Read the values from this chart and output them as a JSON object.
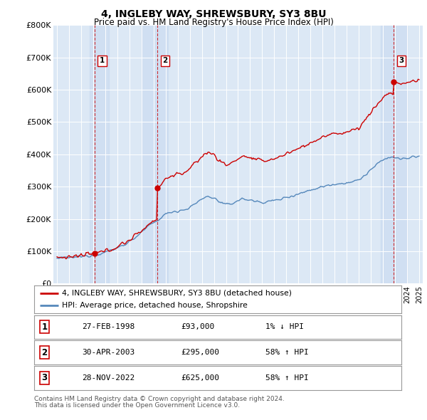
{
  "title": "4, INGLEBY WAY, SHREWSBURY, SY3 8BU",
  "subtitle": "Price paid vs. HM Land Registry's House Price Index (HPI)",
  "ylabel_ticks": [
    "£0",
    "£100K",
    "£200K",
    "£300K",
    "£400K",
    "£500K",
    "£600K",
    "£700K",
    "£800K"
  ],
  "ytick_values": [
    0,
    100000,
    200000,
    300000,
    400000,
    500000,
    600000,
    700000,
    800000
  ],
  "ylim": [
    0,
    800000
  ],
  "xlim_start": 1994.7,
  "xlim_end": 2025.3,
  "legend_property_label": "4, INGLEBY WAY, SHREWSBURY, SY3 8BU (detached house)",
  "legend_hpi_label": "HPI: Average price, detached house, Shropshire",
  "property_color": "#cc0000",
  "hpi_color": "#5588bb",
  "sale_marker_color": "#cc0000",
  "vline_color": "#cc0000",
  "shade_color": "#dde8f5",
  "sale_points": [
    {
      "date_num": 1998.13,
      "price": 93000,
      "label": "1"
    },
    {
      "date_num": 2003.33,
      "price": 295000,
      "label": "2"
    },
    {
      "date_num": 2022.91,
      "price": 625000,
      "label": "3"
    }
  ],
  "table_rows": [
    {
      "label": "1",
      "date": "27-FEB-1998",
      "price": "£93,000",
      "change": "1% ↓ HPI"
    },
    {
      "label": "2",
      "date": "30-APR-2003",
      "price": "£295,000",
      "change": "58% ↑ HPI"
    },
    {
      "label": "3",
      "date": "28-NOV-2022",
      "price": "£625,000",
      "change": "58% ↑ HPI"
    }
  ],
  "footnote1": "Contains HM Land Registry data © Crown copyright and database right 2024.",
  "footnote2": "This data is licensed under the Open Government Licence v3.0.",
  "background_color": "#ffffff",
  "plot_bg_color": "#dce8f5"
}
